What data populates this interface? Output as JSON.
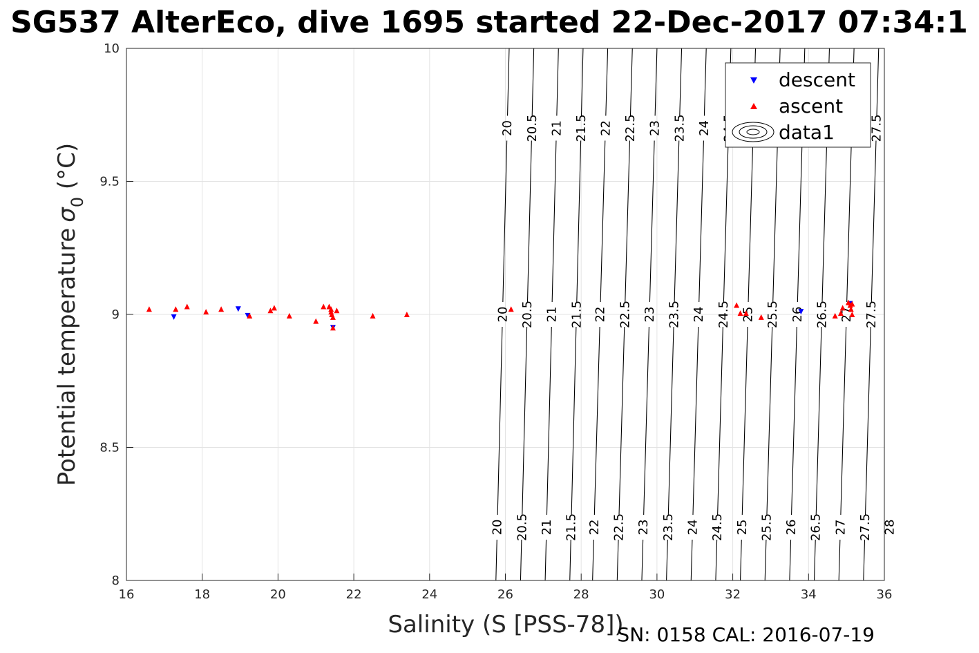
{
  "chart_data": {
    "type": "scatter",
    "title": "SG537 AlterEco, dive 1695 started 22-Dec-2017 07:34:1",
    "xlabel": "Salinity (S [PSS-78])",
    "ylabel": "Potential temperature",
    "ylabel_symbol": "σ",
    "ylabel_sub": "0",
    "ylabel_unit": " (°C)",
    "xlim": [
      16,
      36
    ],
    "ylim": [
      8,
      10
    ],
    "xticks": [
      "16",
      "18",
      "20",
      "22",
      "24",
      "26",
      "28",
      "30",
      "32",
      "34",
      "36"
    ],
    "yticks": [
      "8",
      "8.5",
      "9",
      "9.5",
      "10"
    ],
    "grid": true,
    "legend_position": "top-right",
    "legend": [
      "descent",
      "ascent",
      "data1"
    ],
    "series": [
      {
        "name": "descent",
        "marker": "triangle-down",
        "color": "#0000ff",
        "points": [
          [
            17.25,
            8.99
          ],
          [
            18.95,
            9.02
          ],
          [
            19.2,
            8.995
          ],
          [
            21.45,
            8.95
          ],
          [
            33.8,
            9.01
          ],
          [
            35.1,
            9.04
          ]
        ]
      },
      {
        "name": "ascent",
        "marker": "triangle-up",
        "color": "#ff0000",
        "points": [
          [
            16.6,
            9.02
          ],
          [
            17.3,
            9.02
          ],
          [
            17.6,
            9.03
          ],
          [
            18.1,
            9.01
          ],
          [
            18.5,
            9.02
          ],
          [
            19.25,
            8.995
          ],
          [
            19.8,
            9.015
          ],
          [
            19.9,
            9.025
          ],
          [
            20.3,
            8.995
          ],
          [
            21.0,
            8.975
          ],
          [
            21.2,
            9.03
          ],
          [
            21.35,
            9.03
          ],
          [
            21.4,
            9.02
          ],
          [
            21.4,
            9.01
          ],
          [
            21.42,
            9.0
          ],
          [
            21.45,
            8.99
          ],
          [
            21.45,
            8.95
          ],
          [
            21.55,
            9.015
          ],
          [
            22.5,
            8.995
          ],
          [
            23.4,
            9.0
          ],
          [
            26.15,
            9.02
          ],
          [
            32.1,
            9.035
          ],
          [
            32.2,
            9.005
          ],
          [
            32.35,
            9.005
          ],
          [
            32.75,
            8.99
          ],
          [
            34.7,
            8.995
          ],
          [
            34.85,
            9.005
          ],
          [
            34.9,
            9.025
          ],
          [
            35.05,
            9.045
          ],
          [
            35.1,
            9.035
          ],
          [
            35.12,
            9.02
          ],
          [
            35.15,
            9.0
          ],
          [
            35.15,
            9.04
          ]
        ]
      }
    ],
    "contour_levels": [
      "20",
      "20.5",
      "21",
      "21.5",
      "22",
      "22.5",
      "23",
      "23.5",
      "24",
      "24.5",
      "25",
      "25.5",
      "26",
      "26.5",
      "27",
      "27.5",
      "28"
    ],
    "contours": [
      {
        "label": "20",
        "s_bottom": 25.75,
        "s_top": 26.1
      },
      {
        "label": "20.5",
        "s_bottom": 26.4,
        "s_top": 26.75
      },
      {
        "label": "21",
        "s_bottom": 27.05,
        "s_top": 27.4
      },
      {
        "label": "21.5",
        "s_bottom": 27.7,
        "s_top": 28.05
      },
      {
        "label": "22",
        "s_bottom": 28.3,
        "s_top": 28.7
      },
      {
        "label": "22.5",
        "s_bottom": 28.95,
        "s_top": 29.35
      },
      {
        "label": "23",
        "s_bottom": 29.6,
        "s_top": 30.0
      },
      {
        "label": "23.5",
        "s_bottom": 30.25,
        "s_top": 30.65
      },
      {
        "label": "24",
        "s_bottom": 30.9,
        "s_top": 31.3
      },
      {
        "label": "24.5",
        "s_bottom": 31.55,
        "s_top": 31.95
      },
      {
        "label": "25",
        "s_bottom": 32.2,
        "s_top": 32.6
      },
      {
        "label": "25.5",
        "s_bottom": 32.85,
        "s_top": 33.25
      },
      {
        "label": "26",
        "s_bottom": 33.5,
        "s_top": 33.9
      },
      {
        "label": "26.5",
        "s_bottom": 34.15,
        "s_top": 34.55
      },
      {
        "label": "27",
        "s_bottom": 34.8,
        "s_top": 35.2
      },
      {
        "label": "27.5",
        "s_bottom": 35.45,
        "s_top": 35.85
      },
      {
        "label": "28",
        "s_bottom": 36.1,
        "s_top": 36.5
      }
    ]
  },
  "footer": "SN: 0158  CAL: 2016-07-19"
}
